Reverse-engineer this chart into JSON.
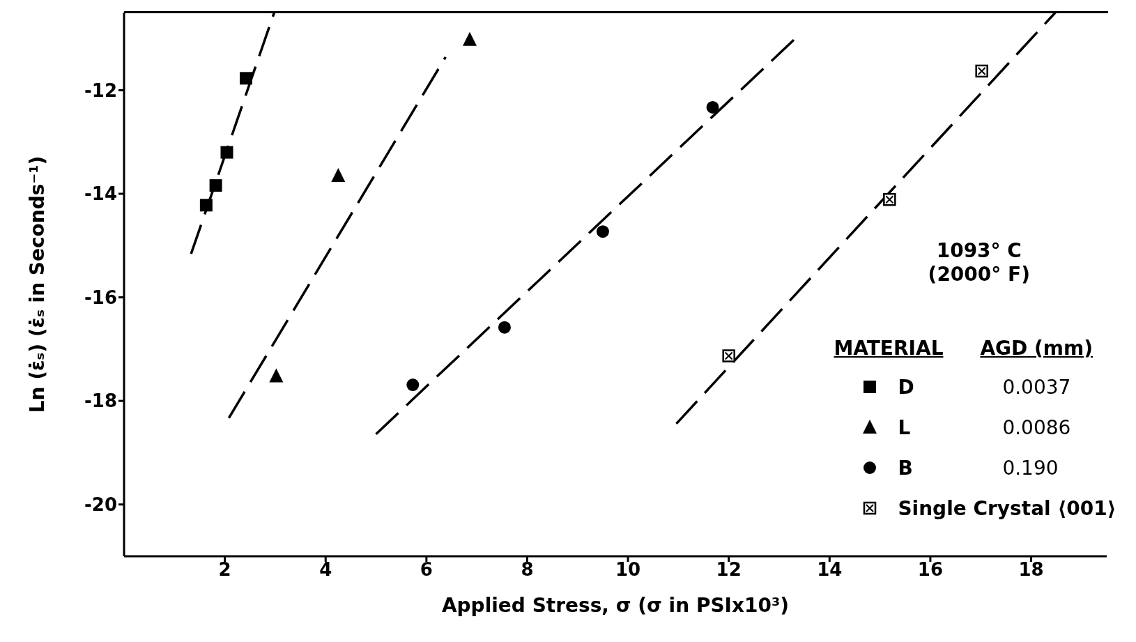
{
  "chart_data": {
    "type": "scatter",
    "xlabel": "Applied Stress, σ    (σ in PSIx10³)",
    "ylabel": "Ln (ε̇ₛ)        (ε̇ₛ in Seconds⁻¹)",
    "xlim": [
      0,
      19.5
    ],
    "ylim": [
      -21,
      -10.5
    ],
    "xticks": [
      2,
      4,
      6,
      8,
      10,
      12,
      14,
      16,
      18
    ],
    "yticks": [
      -20,
      -18,
      -16,
      -14,
      -12
    ],
    "grid": false,
    "legend": "bottom right",
    "legend_title": "MATERIAL",
    "annotations": [
      "1093° C",
      "(2000° F)",
      "AGD (mm)",
      "0.0037",
      "0.0086",
      "0.190"
    ],
    "series": [
      {
        "name": "D",
        "marker": "square",
        "color": "#000000",
        "x": [
          1.63,
          1.82,
          2.04,
          2.42
        ],
        "values": [
          -14.22,
          -13.84,
          -13.2,
          -11.77
        ]
      },
      {
        "name": "L",
        "marker": "triangle",
        "color": "#000000",
        "x": [
          3.02,
          4.25,
          6.86
        ],
        "values": [
          -17.52,
          -13.65,
          -11.02
        ]
      },
      {
        "name": "B",
        "marker": "circle",
        "color": "#000000",
        "x": [
          5.73,
          7.55,
          9.5,
          11.68
        ],
        "values": [
          -17.69,
          -16.58,
          -14.73,
          -12.33
        ]
      },
      {
        "name": "Single Crystal ⟨001⟩",
        "marker": "square",
        "color": "#000000",
        "x": [
          12.0,
          15.19,
          17.02
        ],
        "values": [
          -17.13,
          -14.11,
          -11.63
        ]
      },
      {
        "type": "line",
        "line_style": "dashed",
        "color": "#000000",
        "x": [
          1.33,
          2.98
        ],
        "values": [
          -15.16,
          -10.5
        ]
      },
      {
        "type": "line",
        "line_style": "dashed",
        "color": "#000000",
        "x": [
          2.08,
          6.38
        ],
        "values": [
          -18.33,
          -11.36
        ]
      },
      {
        "type": "line",
        "line_style": "dashed",
        "color": "#000000",
        "x": [
          5.0,
          13.3
        ],
        "values": [
          -18.64,
          -11.02
        ]
      },
      {
        "type": "line",
        "line_style": "dashed",
        "color": "#000000",
        "x": [
          10.96,
          18.48
        ],
        "values": [
          -18.44,
          -10.5
        ]
      }
    ]
  }
}
